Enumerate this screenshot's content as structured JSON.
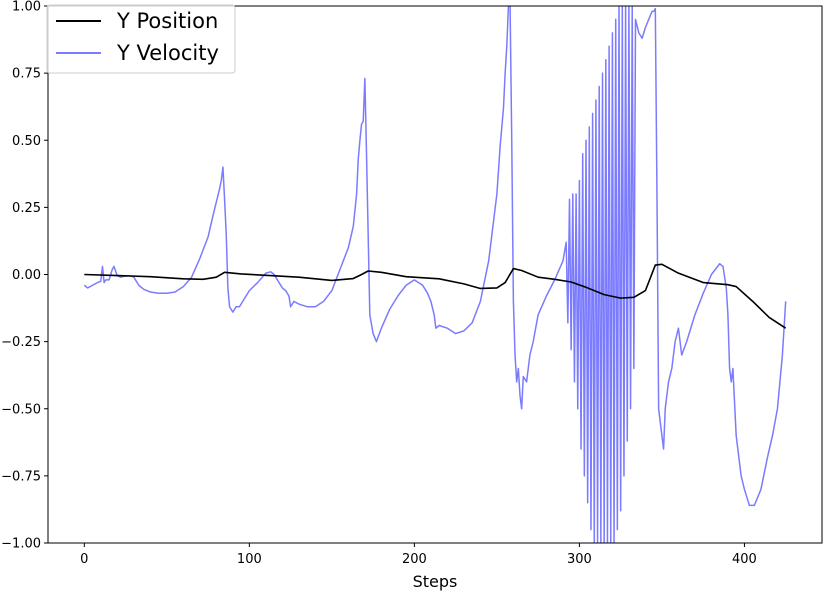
{
  "chart_data": {
    "type": "line",
    "xlabel": "Steps",
    "ylabel": "",
    "xlim": [
      -22,
      447
    ],
    "ylim": [
      -1.0,
      1.0
    ],
    "x_ticks": [
      0,
      100,
      200,
      300,
      400
    ],
    "y_ticks": [
      -1.0,
      -0.75,
      -0.5,
      -0.25,
      0.0,
      0.25,
      0.5,
      0.75,
      1.0
    ],
    "x_tick_labels": [
      "0",
      "100",
      "200",
      "300",
      "400"
    ],
    "y_tick_labels": [
      "−1.00",
      "−0.75",
      "−0.50",
      "−0.25",
      "0.00",
      "0.25",
      "0.50",
      "0.75",
      "1.00"
    ],
    "grid": false,
    "legend_position": "top-left",
    "series": [
      {
        "name": "Y Position",
        "color": "#000000",
        "opacity": 1.0,
        "points": [
          [
            0,
            0.0
          ],
          [
            20,
            -0.004
          ],
          [
            40,
            -0.008
          ],
          [
            60,
            -0.016
          ],
          [
            72,
            -0.018
          ],
          [
            80,
            -0.01
          ],
          [
            85,
            0.008
          ],
          [
            95,
            0.002
          ],
          [
            110,
            -0.003
          ],
          [
            130,
            -0.01
          ],
          [
            150,
            -0.022
          ],
          [
            163,
            -0.015
          ],
          [
            168,
            0.0
          ],
          [
            172,
            0.013
          ],
          [
            180,
            0.008
          ],
          [
            195,
            -0.008
          ],
          [
            215,
            -0.016
          ],
          [
            230,
            -0.035
          ],
          [
            240,
            -0.052
          ],
          [
            250,
            -0.05
          ],
          [
            255,
            -0.03
          ],
          [
            260,
            0.022
          ],
          [
            265,
            0.015
          ],
          [
            275,
            -0.01
          ],
          [
            285,
            -0.018
          ],
          [
            295,
            -0.028
          ],
          [
            305,
            -0.05
          ],
          [
            315,
            -0.075
          ],
          [
            325,
            -0.088
          ],
          [
            333,
            -0.085
          ],
          [
            340,
            -0.06
          ],
          [
            346,
            0.035
          ],
          [
            350,
            0.038
          ],
          [
            360,
            0.005
          ],
          [
            375,
            -0.03
          ],
          [
            390,
            -0.038
          ],
          [
            395,
            -0.045
          ],
          [
            405,
            -0.1
          ],
          [
            415,
            -0.16
          ],
          [
            425,
            -0.2
          ]
        ]
      },
      {
        "name": "Y Velocity",
        "color": "#7b7bff",
        "opacity": 1.0,
        "points": [
          [
            0,
            -0.04
          ],
          [
            2,
            -0.05
          ],
          [
            5,
            -0.04
          ],
          [
            8,
            -0.03
          ],
          [
            10,
            -0.025
          ],
          [
            11,
            0.03
          ],
          [
            12,
            -0.03
          ],
          [
            13,
            -0.02
          ],
          [
            15,
            -0.02
          ],
          [
            17,
            0.02
          ],
          [
            18,
            0.03
          ],
          [
            20,
            -0.005
          ],
          [
            22,
            -0.01
          ],
          [
            25,
            -0.005
          ],
          [
            28,
            -0.005
          ],
          [
            30,
            -0.01
          ],
          [
            33,
            -0.04
          ],
          [
            36,
            -0.055
          ],
          [
            40,
            -0.065
          ],
          [
            45,
            -0.07
          ],
          [
            50,
            -0.07
          ],
          [
            55,
            -0.065
          ],
          [
            60,
            -0.045
          ],
          [
            65,
            -0.01
          ],
          [
            70,
            0.06
          ],
          [
            75,
            0.14
          ],
          [
            78,
            0.22
          ],
          [
            80,
            0.27
          ],
          [
            82,
            0.32
          ],
          [
            83,
            0.35
          ],
          [
            84,
            0.4
          ],
          [
            85,
            0.28
          ],
          [
            86,
            0.15
          ],
          [
            87,
            -0.05
          ],
          [
            88,
            -0.12
          ],
          [
            90,
            -0.14
          ],
          [
            92,
            -0.12
          ],
          [
            94,
            -0.12
          ],
          [
            97,
            -0.09
          ],
          [
            100,
            -0.06
          ],
          [
            105,
            -0.03
          ],
          [
            110,
            0.005
          ],
          [
            113,
            0.01
          ],
          [
            115,
            0.0
          ],
          [
            117,
            -0.02
          ],
          [
            120,
            -0.05
          ],
          [
            122,
            -0.06
          ],
          [
            124,
            -0.08
          ],
          [
            125,
            -0.12
          ],
          [
            127,
            -0.1
          ],
          [
            130,
            -0.11
          ],
          [
            135,
            -0.12
          ],
          [
            140,
            -0.12
          ],
          [
            145,
            -0.1
          ],
          [
            150,
            -0.06
          ],
          [
            155,
            0.02
          ],
          [
            160,
            0.1
          ],
          [
            163,
            0.18
          ],
          [
            165,
            0.3
          ],
          [
            166,
            0.43
          ],
          [
            167,
            0.5
          ],
          [
            168,
            0.56
          ],
          [
            169,
            0.57
          ],
          [
            170,
            0.73
          ],
          [
            171,
            0.45
          ],
          [
            172,
            0.15
          ],
          [
            173,
            -0.15
          ],
          [
            175,
            -0.22
          ],
          [
            177,
            -0.25
          ],
          [
            180,
            -0.2
          ],
          [
            185,
            -0.13
          ],
          [
            190,
            -0.08
          ],
          [
            195,
            -0.04
          ],
          [
            200,
            -0.02
          ],
          [
            205,
            -0.04
          ],
          [
            208,
            -0.07
          ],
          [
            210,
            -0.1
          ],
          [
            212,
            -0.15
          ],
          [
            213,
            -0.2
          ],
          [
            215,
            -0.19
          ],
          [
            220,
            -0.2
          ],
          [
            225,
            -0.22
          ],
          [
            230,
            -0.21
          ],
          [
            235,
            -0.18
          ],
          [
            240,
            -0.1
          ],
          [
            245,
            0.05
          ],
          [
            250,
            0.3
          ],
          [
            252,
            0.48
          ],
          [
            254,
            0.62
          ],
          [
            255,
            0.75
          ],
          [
            256,
            0.85
          ],
          [
            257,
            1.0
          ],
          [
            258,
            1.0
          ],
          [
            259,
            0.5
          ],
          [
            260,
            -0.1
          ],
          [
            261,
            -0.3
          ],
          [
            262,
            -0.4
          ],
          [
            263,
            -0.35
          ],
          [
            264,
            -0.45
          ],
          [
            265,
            -0.5
          ],
          [
            266,
            -0.38
          ],
          [
            268,
            -0.4
          ],
          [
            270,
            -0.3
          ],
          [
            272,
            -0.25
          ],
          [
            275,
            -0.15
          ],
          [
            280,
            -0.08
          ],
          [
            285,
            -0.02
          ],
          [
            290,
            0.05
          ],
          [
            292,
            0.12
          ],
          [
            293,
            -0.18
          ],
          [
            294,
            0.28
          ],
          [
            295,
            -0.28
          ],
          [
            296,
            0.3
          ],
          [
            297,
            -0.4
          ],
          [
            298,
            0.3
          ],
          [
            299,
            -0.5
          ],
          [
            300,
            0.35
          ],
          [
            301,
            -0.65
          ],
          [
            302,
            0.45
          ],
          [
            303,
            -0.75
          ],
          [
            304,
            0.5
          ],
          [
            305,
            -0.85
          ],
          [
            306,
            0.55
          ],
          [
            307,
            -0.95
          ],
          [
            308,
            0.6
          ],
          [
            309,
            -1.0
          ],
          [
            310,
            0.65
          ],
          [
            311,
            -1.0
          ],
          [
            312,
            0.7
          ],
          [
            313,
            -1.0
          ],
          [
            314,
            0.75
          ],
          [
            315,
            -1.0
          ],
          [
            316,
            0.8
          ],
          [
            317,
            -1.0
          ],
          [
            318,
            0.85
          ],
          [
            319,
            -1.0
          ],
          [
            320,
            0.9
          ],
          [
            321,
            -1.0
          ],
          [
            322,
            0.95
          ],
          [
            323,
            -0.95
          ],
          [
            324,
            1.0
          ],
          [
            325,
            -0.88
          ],
          [
            326,
            1.0
          ],
          [
            327,
            -0.75
          ],
          [
            328,
            1.0
          ],
          [
            329,
            -0.62
          ],
          [
            330,
            1.0
          ],
          [
            331,
            -0.5
          ],
          [
            332,
            1.0
          ],
          [
            333,
            -0.35
          ],
          [
            334,
            0.95
          ],
          [
            336,
            0.9
          ],
          [
            338,
            0.88
          ],
          [
            340,
            0.92
          ],
          [
            342,
            0.95
          ],
          [
            344,
            0.98
          ],
          [
            345,
            0.98
          ],
          [
            346,
            0.99
          ],
          [
            347,
            0.3
          ],
          [
            348,
            -0.5
          ],
          [
            349,
            -0.55
          ],
          [
            350,
            -0.6
          ],
          [
            351,
            -0.65
          ],
          [
            352,
            -0.5
          ],
          [
            353,
            -0.45
          ],
          [
            354,
            -0.4
          ],
          [
            356,
            -0.35
          ],
          [
            358,
            -0.25
          ],
          [
            360,
            -0.2
          ],
          [
            362,
            -0.3
          ],
          [
            365,
            -0.25
          ],
          [
            370,
            -0.15
          ],
          [
            375,
            -0.07
          ],
          [
            380,
            0.0
          ],
          [
            385,
            0.04
          ],
          [
            387,
            0.03
          ],
          [
            389,
            -0.05
          ],
          [
            390,
            -0.15
          ],
          [
            391,
            -0.35
          ],
          [
            392,
            -0.4
          ],
          [
            393,
            -0.35
          ],
          [
            395,
            -0.6
          ],
          [
            396,
            -0.65
          ],
          [
            398,
            -0.75
          ],
          [
            400,
            -0.8
          ],
          [
            403,
            -0.86
          ],
          [
            406,
            -0.86
          ],
          [
            410,
            -0.8
          ],
          [
            414,
            -0.68
          ],
          [
            417,
            -0.6
          ],
          [
            420,
            -0.5
          ],
          [
            423,
            -0.3
          ],
          [
            425,
            -0.1
          ]
        ]
      }
    ]
  }
}
